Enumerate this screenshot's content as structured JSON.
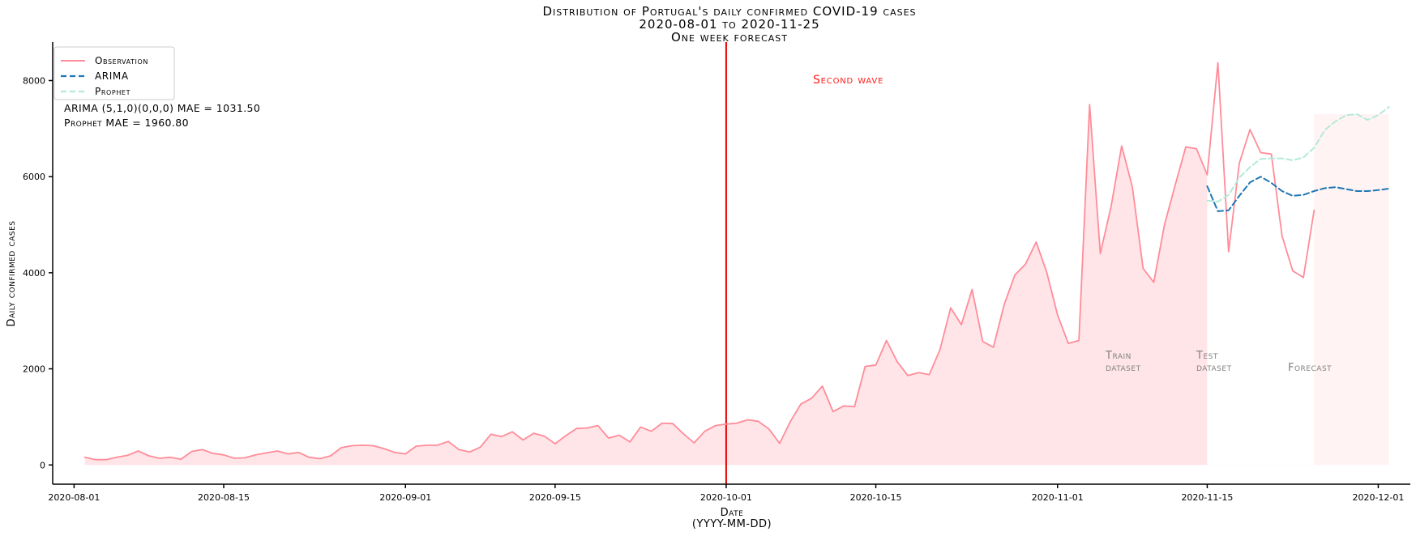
{
  "chart_data": {
    "type": "line",
    "title": [
      "Distribution of Portugal's daily confirmed COVID-19 cases",
      "2020-08-01 to 2020-11-25",
      "One week forecast"
    ],
    "xlabel": "Date",
    "xlabel_sub": "(YYYY-MM-DD)",
    "ylabel": "Daily confirmed cases",
    "xlim": [
      "2020-07-30",
      "2020-12-04"
    ],
    "ylim": [
      -400,
      8800
    ],
    "x_ticks": [
      "2020-08-01",
      "2020-08-15",
      "2020-09-01",
      "2020-09-15",
      "2020-10-01",
      "2020-10-15",
      "2020-11-01",
      "2020-11-15",
      "2020-12-01"
    ],
    "y_ticks": [
      0,
      2000,
      4000,
      6000,
      8000
    ],
    "colors": {
      "observation": "#ff8c99",
      "observation_fill": "#ffe5e8",
      "arima": "#1f77b4",
      "prophet": "#b3ead9",
      "forecast_fill": "#fff3f4",
      "second_wave": "#e60000"
    },
    "legend": {
      "position": "top-left",
      "entries": [
        {
          "label": "Observation",
          "series": "observation"
        },
        {
          "label": "ARIMA",
          "series": "arima"
        },
        {
          "label": "Prophet",
          "series": "prophet"
        }
      ]
    },
    "annotations": {
      "arima_mae": "ARIMA (5,1,0)(0,0,0) MAE = 1031.50",
      "prophet_mae": "Prophet MAE = 1960.80",
      "second_wave": "Second wave",
      "second_wave_date": "2020-10-01",
      "train_label": [
        "Train",
        "dataset"
      ],
      "test_label": [
        "Test",
        "dataset"
      ],
      "forecast_label": "Forecast",
      "test_start": "2020-11-15",
      "forecast_start": "2020-11-25",
      "forecast_end": "2020-12-02"
    },
    "series": [
      {
        "name": "Observation",
        "start": "2020-08-02",
        "values": [
          160,
          110,
          110,
          160,
          200,
          290,
          190,
          140,
          160,
          120,
          280,
          320,
          240,
          210,
          140,
          150,
          210,
          250,
          290,
          230,
          260,
          160,
          130,
          190,
          360,
          400,
          410,
          400,
          340,
          260,
          230,
          390,
          410,
          410,
          490,
          320,
          270,
          370,
          640,
          590,
          690,
          520,
          660,
          600,
          440,
          610,
          760,
          770,
          820,
          560,
          620,
          480,
          790,
          700,
          870,
          860,
          650,
          460,
          700,
          820,
          850,
          870,
          940,
          910,
          750,
          450,
          900,
          1270,
          1390,
          1640,
          1110,
          1230,
          1210,
          2050,
          2080,
          2590,
          2150,
          1860,
          1920,
          1880,
          2400,
          3270,
          2920,
          3650,
          2570,
          2450,
          3330,
          3950,
          4180,
          4640,
          4000,
          3120,
          2530,
          2590,
          7500,
          4400,
          5370,
          6640,
          5780,
          4090,
          3800,
          5000,
          5820,
          6620,
          6580,
          6040,
          8370,
          4440,
          6280,
          6980,
          6500,
          6470,
          4770,
          4040,
          3900,
          5300
        ]
      },
      {
        "name": "ARIMA",
        "start": "2020-11-15",
        "values": [
          5800,
          5280,
          5300,
          5600,
          5880,
          6000,
          5870,
          5700,
          5600,
          5620,
          5700,
          5760,
          5780,
          5740,
          5700,
          5700,
          5720,
          5750
        ]
      },
      {
        "name": "Prophet",
        "start": "2020-11-15",
        "values": [
          5500,
          5480,
          5620,
          5980,
          6200,
          6370,
          6380,
          6380,
          6340,
          6400,
          6600,
          6970,
          7150,
          7280,
          7300,
          7180,
          7280,
          7450
        ]
      }
    ]
  }
}
